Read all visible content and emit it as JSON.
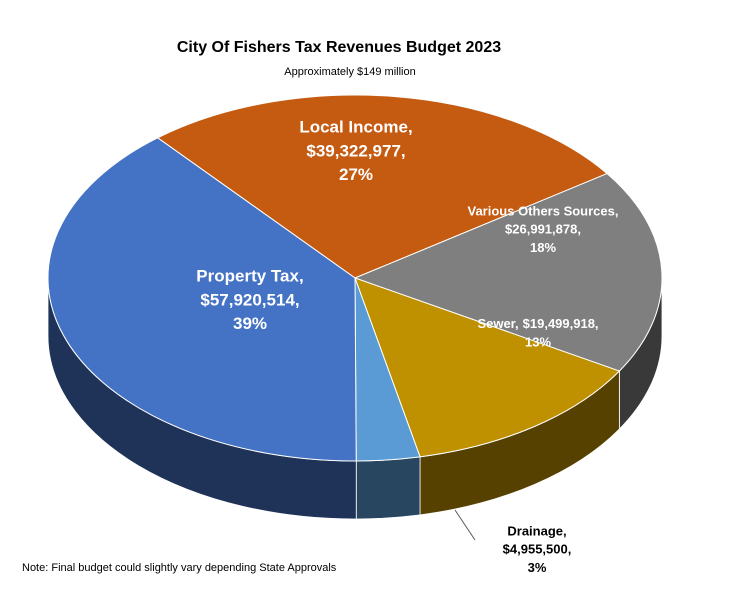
{
  "chart_data": {
    "type": "pie",
    "title": "City Of Fishers Tax Revenues Budget 2023",
    "subtitle": "Approximately $149 million",
    "note": "Note: Final budget could slightly vary depending State Approvals",
    "categories": [
      "Local Income,",
      "Various Others Sources,",
      "Sewer,",
      "Drainage,",
      "Property Tax,"
    ],
    "values": [
      39322977,
      26991878,
      19499918,
      4955500,
      57920514
    ],
    "value_labels": [
      "$39,322,977,",
      "$26,991,878,",
      "$19,499,918,",
      "$4,955,500,",
      "$57,920,514,"
    ],
    "shares": [
      27,
      18,
      13,
      3,
      39
    ],
    "share_labels": [
      "27%",
      "18%",
      "13%",
      "3%",
      "39%"
    ],
    "colors": [
      "#c55a11",
      "#7f7f7f",
      "#bf9000",
      "#5b9bd5",
      "#4472c4"
    ]
  }
}
